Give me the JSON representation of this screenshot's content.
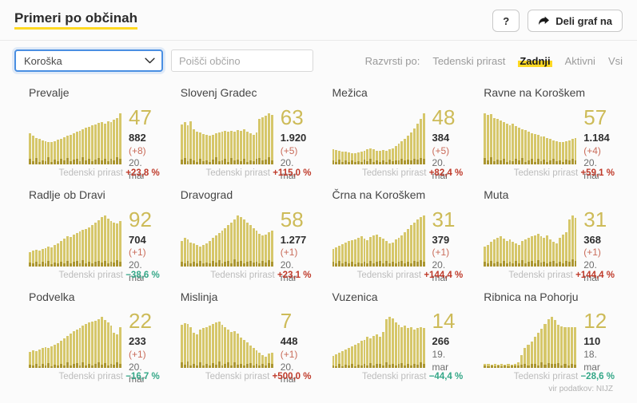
{
  "header": {
    "title": "Primeri po občinah",
    "help_label": "?",
    "share_label": "Deli graf na"
  },
  "filters": {
    "region_selected": "Koroška",
    "search_placeholder": "Poišči občino",
    "sort_label": "Razvrsti po:",
    "sort_options": [
      {
        "label": "Tedenski prirast",
        "active": false
      },
      {
        "label": "Zadnji",
        "active": true
      },
      {
        "label": "Aktivni",
        "active": false
      },
      {
        "label": "Vsi",
        "active": false
      }
    ]
  },
  "labels": {
    "weekly_growth": "Tedenski prirast",
    "source": "vir podatkov: NIJZ"
  },
  "colors": {
    "accent_yellow": "#ffd922",
    "bar": "#d6c76a",
    "bar_active": "#ab9630",
    "big_number": "#cdbb58",
    "delta": "#c96b59",
    "growth_up": "#bf3a2a",
    "growth_down": "#33a787"
  },
  "cards": [
    {
      "name": "Prevalje",
      "last_value": "47",
      "total": "882",
      "delta": "(+8)",
      "date": "20. mar",
      "growth": "+23,8 %"
    },
    {
      "name": "Slovenj Gradec",
      "last_value": "63",
      "total": "1.920",
      "delta": "(+5)",
      "date": "20. mar",
      "growth": "+115,0 %"
    },
    {
      "name": "Mežica",
      "last_value": "48",
      "total": "384",
      "delta": "(+5)",
      "date": "20. mar",
      "growth": "+82,4 %"
    },
    {
      "name": "Ravne na Koroškem",
      "last_value": "57",
      "total": "1.184",
      "delta": "(+4)",
      "date": "20. mar",
      "growth": "+59,1 %"
    },
    {
      "name": "Radlje ob Dravi",
      "last_value": "92",
      "total": "704",
      "delta": "(+1)",
      "date": "20. mar",
      "growth": "−38,6 %"
    },
    {
      "name": "Dravograd",
      "last_value": "58",
      "total": "1.277",
      "delta": "(+1)",
      "date": "20. mar",
      "growth": "+23,1 %"
    },
    {
      "name": "Črna na Koroškem",
      "last_value": "31",
      "total": "379",
      "delta": "(+1)",
      "date": "20. mar",
      "growth": "+144,4 %"
    },
    {
      "name": "Muta",
      "last_value": "31",
      "total": "368",
      "delta": "(+1)",
      "date": "20. mar",
      "growth": "+144,4 %"
    },
    {
      "name": "Podvelka",
      "last_value": "22",
      "total": "233",
      "delta": "(+1)",
      "date": "20. mar",
      "growth": "−16,7 %"
    },
    {
      "name": "Mislinja",
      "last_value": "7",
      "total": "448",
      "delta": "(+1)",
      "date": "20. mar",
      "growth": "+500,0 %"
    },
    {
      "name": "Vuzenica",
      "last_value": "14",
      "total": "266",
      "delta": "",
      "date": "19. mar",
      "growth": "−44,4 %"
    },
    {
      "name": "Ribnica na Pohorju",
      "last_value": "12",
      "total": "110",
      "delta": "",
      "date": "18. mar",
      "growth": "−28,6 %"
    }
  ],
  "chart_data": [
    {
      "type": "bar",
      "municipality": "Prevalje",
      "values_unit": "percent_of_max",
      "bars": [
        60,
        56,
        52,
        50,
        47,
        45,
        44,
        43,
        45,
        48,
        50,
        53,
        56,
        58,
        61,
        63,
        66,
        68,
        71,
        73,
        76,
        78,
        81,
        83,
        80,
        84,
        82,
        87,
        90,
        100
      ],
      "bars_active": [
        10,
        6,
        12,
        5,
        8,
        6,
        14,
        5,
        9,
        6,
        10,
        7,
        12,
        6,
        9,
        11,
        6,
        13,
        7,
        10,
        6,
        9,
        12,
        7,
        10,
        6,
        11,
        8,
        14,
        10
      ]
    },
    {
      "type": "bar",
      "municipality": "Slovenj Gradec",
      "values_unit": "percent_of_max",
      "bars": [
        78,
        82,
        76,
        84,
        68,
        64,
        62,
        59,
        57,
        56,
        58,
        60,
        62,
        63,
        65,
        63,
        66,
        64,
        67,
        65,
        68,
        64,
        60,
        58,
        62,
        88,
        92,
        95,
        100,
        97
      ],
      "bars_active": [
        9,
        12,
        6,
        10,
        7,
        5,
        11,
        6,
        8,
        5,
        9,
        13,
        6,
        8,
        10,
        5,
        12,
        7,
        9,
        6,
        11,
        5,
        8,
        6,
        10,
        12,
        7,
        9,
        13,
        8
      ]
    },
    {
      "type": "bar",
      "municipality": "Mežica",
      "values_unit": "percent_of_max",
      "bars": [
        30,
        28,
        26,
        25,
        24,
        23,
        22,
        22,
        23,
        25,
        27,
        29,
        31,
        29,
        27,
        26,
        28,
        27,
        29,
        31,
        35,
        40,
        45,
        50,
        56,
        62,
        70,
        79,
        89,
        100
      ],
      "bars_active": [
        8,
        5,
        9,
        4,
        7,
        5,
        8,
        4,
        6,
        5,
        9,
        6,
        10,
        5,
        7,
        4,
        8,
        5,
        9,
        6,
        8,
        7,
        10,
        8,
        9,
        7,
        11,
        9,
        12,
        10
      ]
    },
    {
      "type": "bar",
      "municipality": "Ravne na Koroškem",
      "values_unit": "percent_of_max",
      "bars": [
        100,
        96,
        98,
        91,
        88,
        85,
        82,
        79,
        77,
        79,
        74,
        71,
        69,
        67,
        64,
        61,
        59,
        57,
        55,
        54,
        51,
        49,
        47,
        45,
        44,
        43,
        45,
        47,
        49,
        51
      ],
      "bars_active": [
        12,
        7,
        14,
        6,
        9,
        7,
        11,
        5,
        8,
        6,
        10,
        7,
        12,
        5,
        8,
        10,
        5,
        11,
        6,
        9,
        5,
        8,
        10,
        6,
        8,
        5,
        9,
        7,
        11,
        8
      ]
    },
    {
      "type": "bar",
      "municipality": "Radlje ob Dravi",
      "values_unit": "percent_of_max",
      "bars": [
        28,
        30,
        32,
        31,
        34,
        36,
        38,
        37,
        41,
        45,
        50,
        54,
        59,
        57,
        62,
        65,
        68,
        71,
        73,
        76,
        80,
        85,
        90,
        96,
        100,
        93,
        88,
        85,
        83,
        89
      ],
      "bars_active": [
        7,
        5,
        9,
        4,
        8,
        5,
        10,
        4,
        7,
        5,
        9,
        6,
        11,
        5,
        8,
        10,
        5,
        12,
        6,
        9,
        5,
        8,
        11,
        7,
        10,
        6,
        9,
        7,
        12,
        9
      ]
    },
    {
      "type": "bar",
      "municipality": "Dravograd",
      "values_unit": "percent_of_max",
      "bars": [
        50,
        55,
        52,
        47,
        44,
        41,
        39,
        42,
        45,
        50,
        55,
        60,
        65,
        70,
        75,
        80,
        86,
        91,
        100,
        96,
        91,
        86,
        80,
        74,
        69,
        64,
        60,
        62,
        66,
        69
      ],
      "bars_active": [
        9,
        6,
        11,
        5,
        8,
        5,
        10,
        5,
        7,
        6,
        10,
        7,
        12,
        6,
        9,
        11,
        6,
        13,
        8,
        10,
        6,
        9,
        11,
        7,
        9,
        6,
        10,
        7,
        12,
        9
      ]
    },
    {
      "type": "bar",
      "municipality": "Črna na Koroškem",
      "values_unit": "percent_of_max",
      "bars": [
        34,
        37,
        40,
        43,
        46,
        49,
        51,
        53,
        56,
        58,
        54,
        51,
        57,
        60,
        62,
        57,
        54,
        49,
        44,
        47,
        52,
        56,
        61,
        66,
        73,
        80,
        86,
        91,
        96,
        100
      ],
      "bars_active": [
        8,
        5,
        10,
        5,
        8,
        5,
        9,
        4,
        7,
        5,
        9,
        6,
        11,
        5,
        8,
        10,
        5,
        11,
        6,
        9,
        5,
        8,
        10,
        6,
        9,
        6,
        10,
        8,
        12,
        9
      ]
    },
    {
      "type": "bar",
      "municipality": "Muta",
      "values_unit": "percent_of_max",
      "bars": [
        38,
        42,
        48,
        52,
        56,
        58,
        54,
        50,
        53,
        48,
        45,
        42,
        49,
        53,
        56,
        59,
        61,
        63,
        58,
        55,
        61,
        52,
        48,
        45,
        56,
        62,
        67,
        92,
        100,
        95
      ],
      "bars_active": [
        8,
        6,
        10,
        5,
        9,
        6,
        11,
        5,
        8,
        6,
        10,
        6,
        12,
        6,
        9,
        11,
        6,
        12,
        7,
        9,
        6,
        8,
        11,
        6,
        9,
        6,
        10,
        9,
        13,
        10
      ]
    },
    {
      "type": "bar",
      "municipality": "Podvelka",
      "values_unit": "percent_of_max",
      "bars": [
        32,
        35,
        33,
        37,
        39,
        41,
        39,
        43,
        46,
        49,
        53,
        58,
        63,
        68,
        72,
        76,
        79,
        83,
        86,
        89,
        91,
        93,
        96,
        100,
        94,
        89,
        84,
        70,
        66,
        81
      ],
      "bars_active": [
        7,
        5,
        9,
        4,
        8,
        5,
        10,
        4,
        7,
        5,
        9,
        6,
        11,
        5,
        9,
        10,
        5,
        12,
        6,
        9,
        6,
        8,
        11,
        7,
        10,
        6,
        9,
        7,
        11,
        9
      ]
    },
    {
      "type": "bar",
      "municipality": "Mislinja",
      "values_unit": "percent_of_max",
      "bars": [
        85,
        88,
        86,
        81,
        70,
        66,
        76,
        79,
        81,
        83,
        86,
        89,
        91,
        85,
        80,
        75,
        71,
        73,
        68,
        60,
        55,
        50,
        45,
        40,
        35,
        30,
        26,
        22,
        28,
        31
      ],
      "bars_active": [
        11,
        7,
        13,
        6,
        9,
        6,
        12,
        5,
        8,
        6,
        10,
        7,
        13,
        6,
        9,
        11,
        6,
        12,
        7,
        9,
        6,
        8,
        10,
        6,
        8,
        5,
        8,
        6,
        10,
        8
      ]
    },
    {
      "type": "bar",
      "municipality": "Vuzenica",
      "values_unit": "percent_of_max",
      "bars": [
        24,
        27,
        30,
        33,
        36,
        39,
        43,
        46,
        49,
        53,
        56,
        61,
        58,
        63,
        66,
        61,
        71,
        96,
        100,
        97,
        90,
        85,
        80,
        83,
        78,
        81,
        76,
        79,
        81,
        78
      ],
      "bars_active": [
        6,
        4,
        8,
        4,
        7,
        5,
        9,
        4,
        7,
        5,
        9,
        6,
        10,
        5,
        8,
        9,
        5,
        12,
        7,
        9,
        5,
        8,
        10,
        6,
        9,
        6,
        9,
        7,
        11,
        8
      ]
    },
    {
      "type": "bar",
      "municipality": "Ribnica na Pohorju",
      "values_unit": "percent_of_max",
      "bars": [
        8,
        8,
        7,
        8,
        7,
        8,
        7,
        8,
        7,
        8,
        12,
        26,
        40,
        46,
        52,
        61,
        69,
        77,
        86,
        96,
        100,
        94,
        85,
        82,
        81,
        81,
        81,
        81
      ],
      "bars_active": [
        5,
        4,
        5,
        4,
        5,
        4,
        5,
        4,
        5,
        5,
        6,
        7,
        9,
        6,
        8,
        9,
        6,
        11,
        7,
        10,
        8,
        9,
        10,
        6,
        9,
        6,
        9,
        7
      ]
    }
  ]
}
